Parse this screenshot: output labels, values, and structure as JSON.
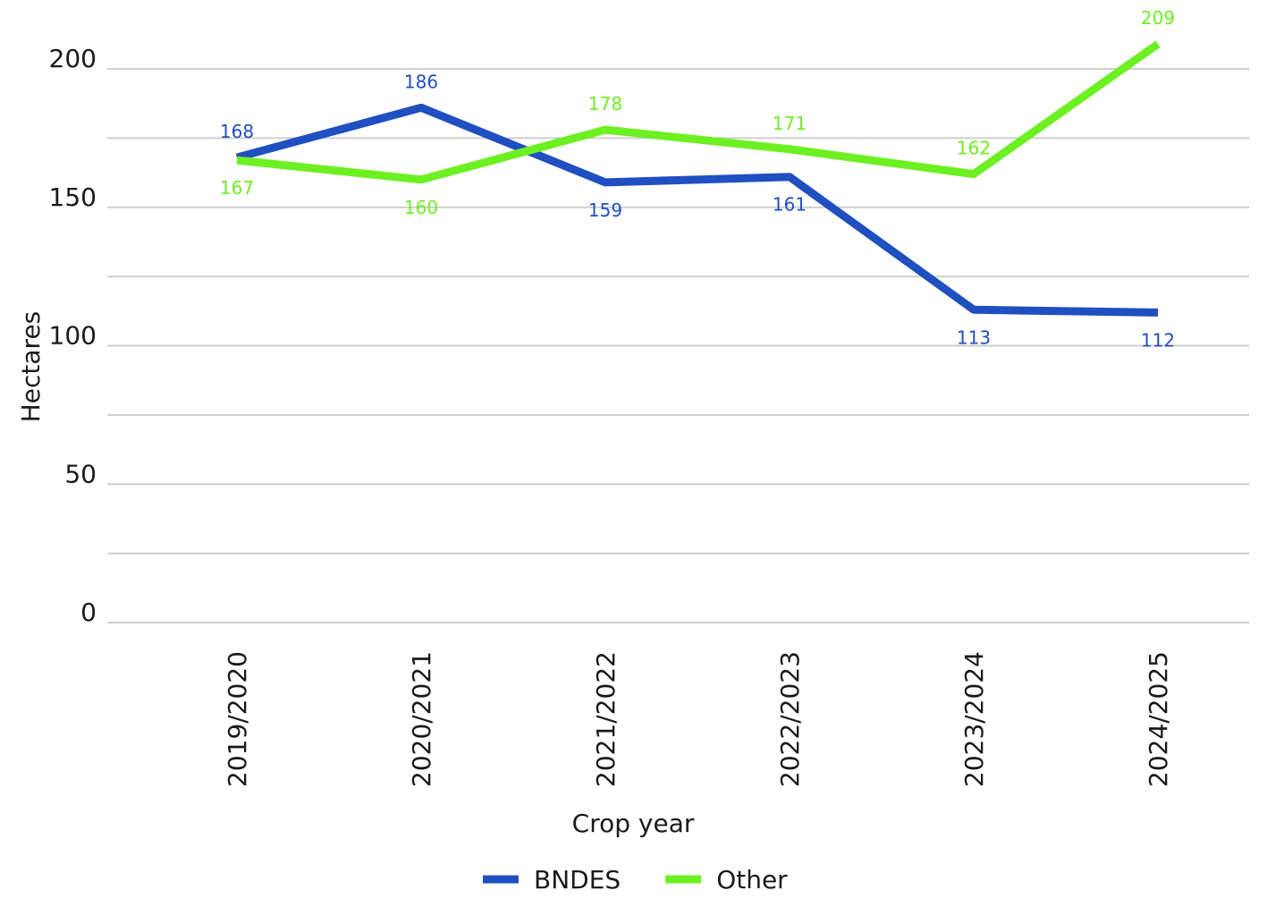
{
  "chart_data": {
    "type": "line",
    "x_label": "Crop year",
    "y_label": "Hectares",
    "categories": [
      "2019/2020",
      "2020/2021",
      "2021/2022",
      "2022/2023",
      "2023/2024",
      "2024/2025"
    ],
    "series": [
      {
        "name": "BNDES",
        "color": "#1f4fc0",
        "values": [
          168,
          186,
          159,
          161,
          113,
          112
        ]
      },
      {
        "name": "Other",
        "color": "#6cf021",
        "values": [
          167,
          160,
          178,
          171,
          162,
          209
        ]
      }
    ],
    "ylim": [
      0,
      220
    ],
    "yticks": [
      0,
      50,
      100,
      150,
      200
    ],
    "minor_yticks": [
      25,
      75,
      125,
      175
    ],
    "grid": true,
    "legend": "bottom"
  }
}
